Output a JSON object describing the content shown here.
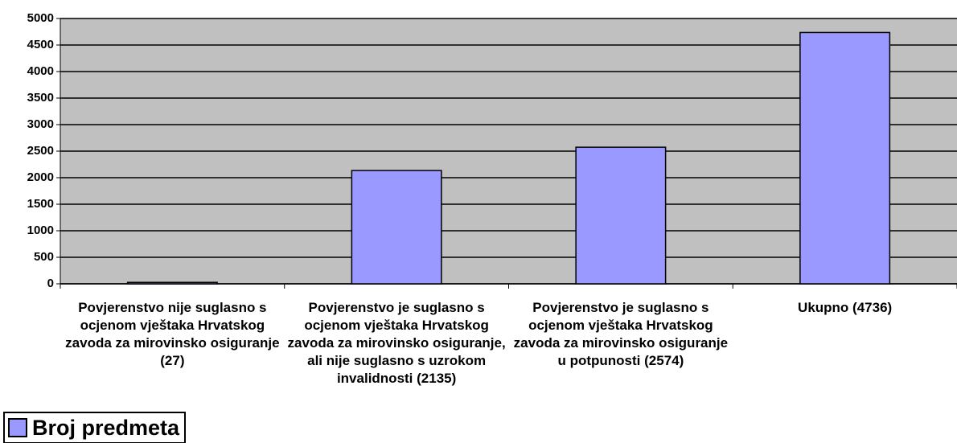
{
  "chart_data": {
    "type": "bar",
    "categories": [
      "Povjerenstvo nije suglasno s ocjenom vještaka Hrvatskog zavoda za mirovinsko osiguranje (27)",
      "Povjerenstvo je suglasno s ocjenom vještaka Hrvatskog zavoda za mirovinsko osiguranje, ali nije suglasno s uzrokom invalidnosti (2135)",
      "Povjerenstvo je suglasno s ocjenom vještaka Hrvatskog zavoda za mirovinsko osiguranje u potpunosti (2574)",
      "Ukupno (4736)"
    ],
    "series": [
      {
        "name": "Broj predmeta",
        "color": "#9999ff",
        "values": [
          27,
          2135,
          2574,
          4736
        ]
      }
    ],
    "ylim": [
      0,
      5000
    ],
    "yticks": [
      0,
      500,
      1000,
      1500,
      2000,
      2500,
      3000,
      3500,
      4000,
      4500,
      5000
    ],
    "grid": true,
    "legend": "bottom-left"
  }
}
